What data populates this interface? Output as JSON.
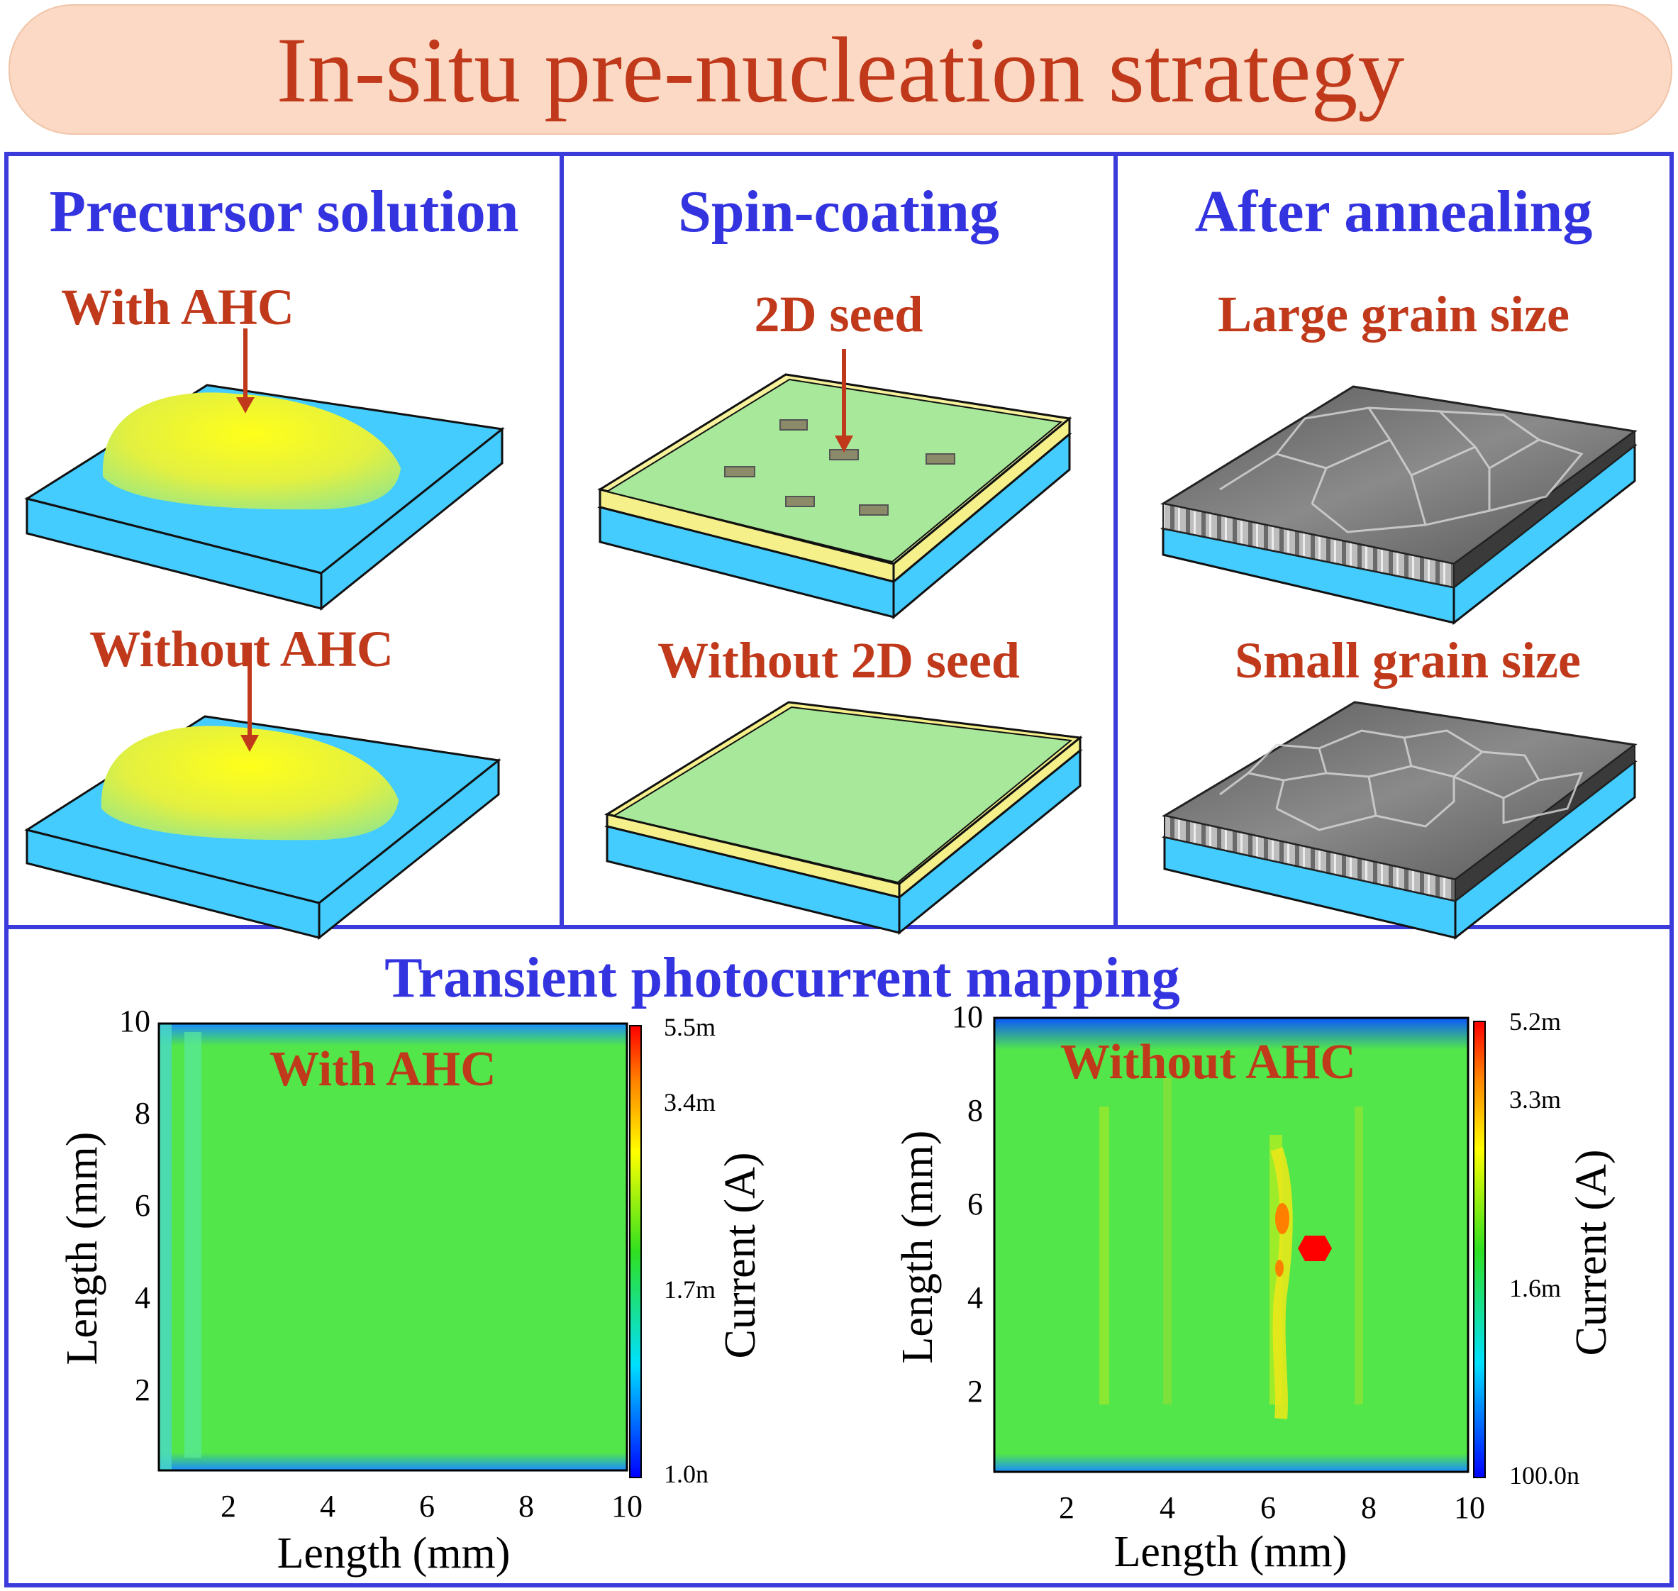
{
  "title": "In-situ pre-nucleation strategy",
  "columns": [
    {
      "title": "Precursor solution",
      "top_label": "With AHC",
      "bottom_label": "Without AHC"
    },
    {
      "title": "Spin-coating",
      "top_label": "2D seed",
      "bottom_label": "Without 2D seed"
    },
    {
      "title": "After annealing",
      "top_label": "Large grain size",
      "bottom_label": "Small grain size"
    }
  ],
  "mapping": {
    "title": "Transient photocurrent mapping",
    "maps": [
      {
        "label": "With AHC",
        "colorbar_ticks": [
          "5.5m",
          "3.4m",
          "1.7m",
          "1.0n"
        ]
      },
      {
        "label": "Without AHC",
        "colorbar_ticks": [
          "5.2m",
          "3.3m",
          "1.6m",
          "100.0n"
        ]
      }
    ],
    "x_axis_label": "Length (mm)",
    "y_axis_label": "Length (mm)",
    "colorbar_label": "Current (A)",
    "x_ticks": [
      "2",
      "4",
      "6",
      "8",
      "10"
    ],
    "y_ticks": [
      "2",
      "4",
      "6",
      "8",
      "10"
    ]
  },
  "colors": {
    "title": "#c0391b",
    "heading": "#3333e0",
    "frame": "#3b3bdc",
    "substrate": "#44ccff",
    "film": "#a8e89a"
  }
}
